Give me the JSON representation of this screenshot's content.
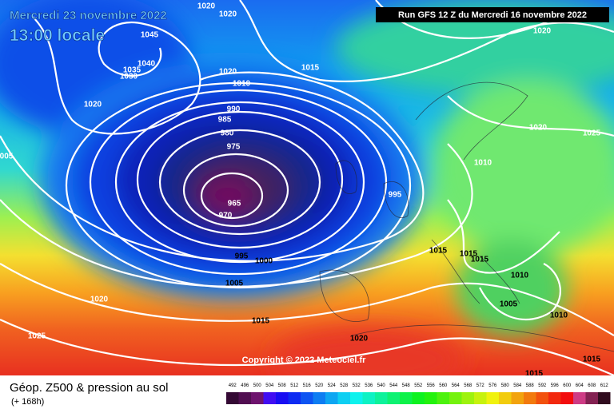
{
  "header": {
    "date": "Mercredi 23 novembre 2022",
    "time": "13:00 locale",
    "run": "Run GFS 12 Z du Mercredi 16 novembre 2022"
  },
  "isobar_labels": [
    "1020",
    "1020",
    "1045",
    "1040",
    "1035",
    "1030",
    "1020",
    "1010",
    "1015",
    "1020",
    "990",
    "985",
    "980",
    "975",
    "965",
    "970",
    "995",
    "995",
    "1000",
    "1005",
    "1020",
    "1015",
    "1025",
    "1020",
    "1020",
    "1020",
    "1025",
    "1010",
    "005",
    "1015",
    "1015",
    "1015",
    "1010",
    "1005",
    "1010",
    "1015",
    "1015"
  ],
  "copyright": "Copyright © 2022 Meteociel.fr",
  "legend": {
    "title": "Géop. Z500 & pression au sol",
    "subtitle": "(+ 168h)",
    "scale": [
      492,
      496,
      500,
      504,
      508,
      512,
      516,
      520,
      524,
      528,
      532,
      536,
      540,
      544,
      548,
      552,
      556,
      560,
      564,
      568,
      572,
      576,
      580,
      584,
      588,
      592,
      596,
      600,
      604,
      608,
      612
    ]
  }
}
